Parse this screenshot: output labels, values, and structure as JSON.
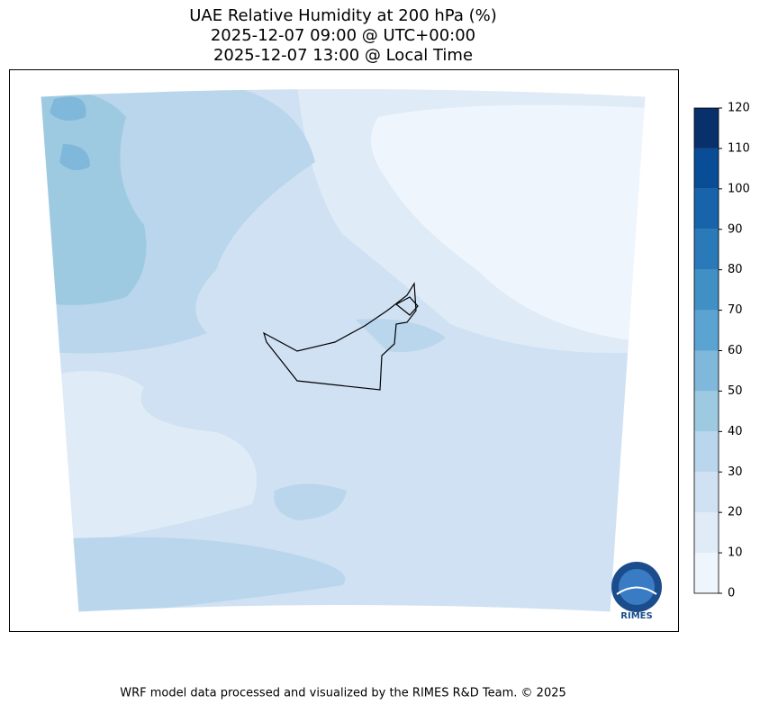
{
  "title": [
    "UAE Relative Humidity at 200 hPa (%)",
    "2025-12-07 09:00 @ UTC+00:00",
    "2025-12-07 13:00 @ Local Time"
  ],
  "colorbar": {
    "lim": [
      0,
      120
    ],
    "ticks": [
      0,
      10,
      20,
      30,
      40,
      50,
      60,
      70,
      80,
      90,
      100,
      110,
      120
    ],
    "colors": [
      "#eff5fc",
      "#dfebf7",
      "#cfe1f2",
      "#b9d6ec",
      "#9ecae1",
      "#7fb8da",
      "#5ba3d0",
      "#4090c5",
      "#2a7ab9",
      "#1764ab",
      "#084d96",
      "#08306b"
    ]
  },
  "logo": "RIMES",
  "footer": "WRF model data processed and visualized by the RIMES R&D Team. © 2025"
}
